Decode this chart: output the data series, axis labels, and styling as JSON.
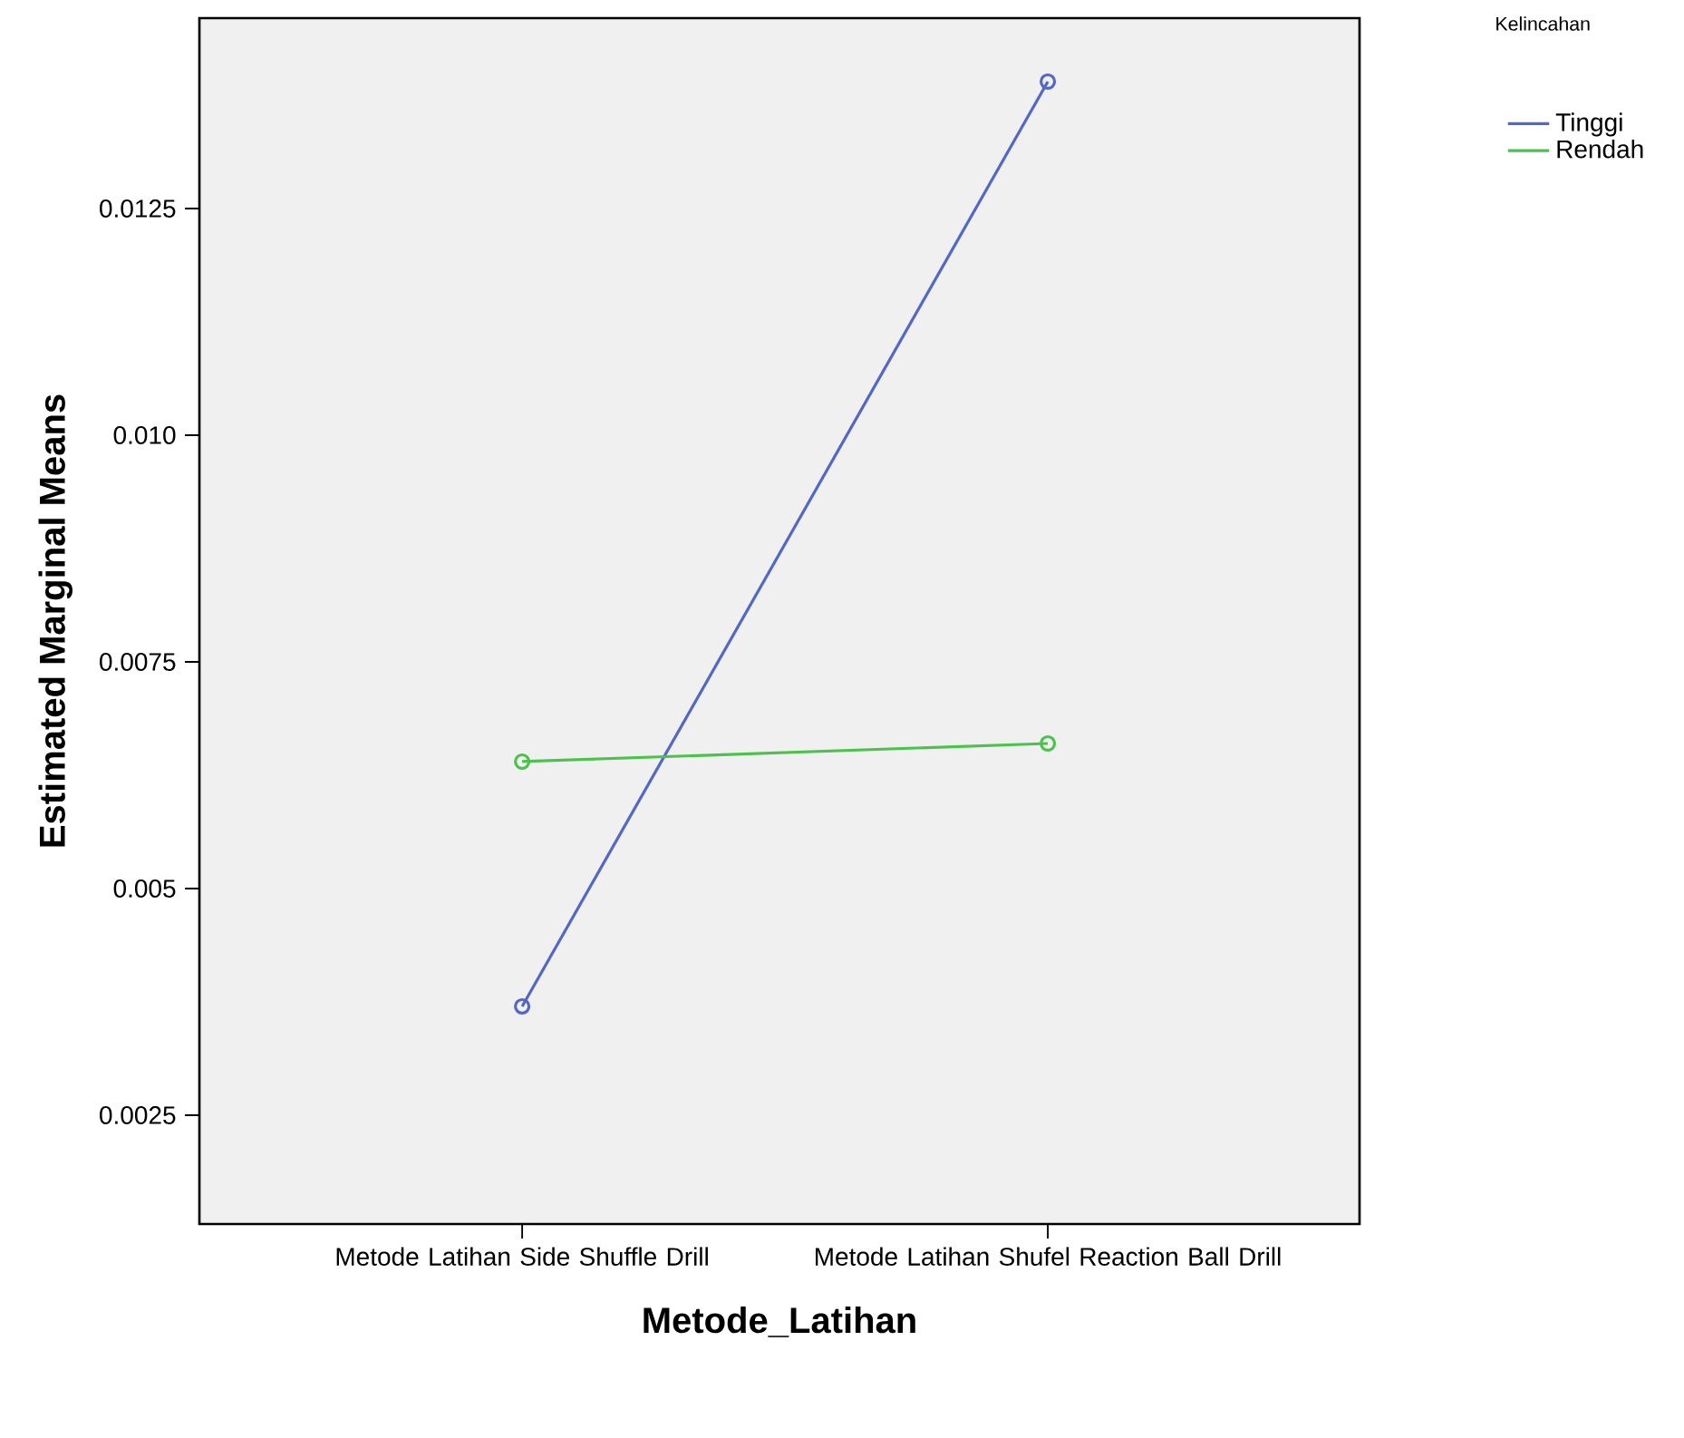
{
  "chart_data": {
    "type": "line",
    "xlabel": "Metode_Latihan",
    "ylabel": "Estimated Marginal Means",
    "legend_title": "Kelincahan",
    "categories": [
      "Metode Latihan Side Shuffle Drill",
      "Metode Latihan Shufel Reaction Ball Drill"
    ],
    "series": [
      {
        "name": "Tinggi",
        "color": "#5367c4",
        "values": [
          0.0037,
          0.0139
        ]
      },
      {
        "name": "Rendah",
        "color": "#4cc24c",
        "values": [
          0.0064,
          0.0066
        ]
      }
    ],
    "ylim": [
      0.0013,
      0.0146
    ],
    "yticks": [
      0.0025,
      0.005,
      0.0075,
      {
        "value": 0.01,
        "label": "0.010"
      },
      0.0125
    ],
    "legend": "top right",
    "marker": "circle",
    "grid": false
  }
}
